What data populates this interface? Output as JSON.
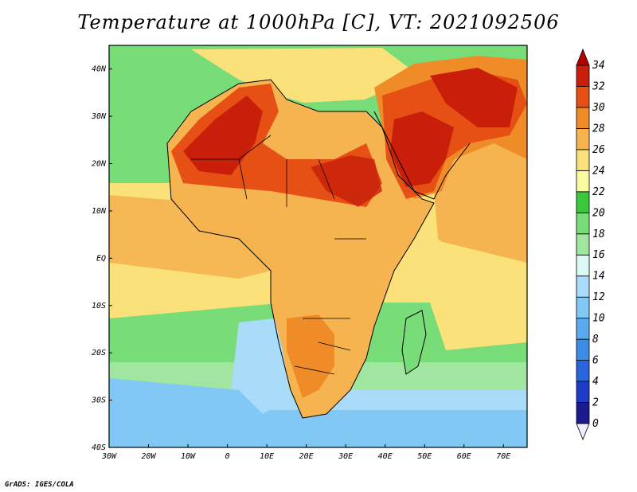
{
  "title": "Temperature at 1000hPa [C], VT: 2021092506",
  "credit": "GrADS: IGES/COLA",
  "map": {
    "lon_range": [
      -30,
      76
    ],
    "lat_range": [
      -40,
      45
    ],
    "x_ticks": [
      "30W",
      "20W",
      "10W",
      "0",
      "10E",
      "20E",
      "30E",
      "40E",
      "50E",
      "60E",
      "70E"
    ],
    "y_ticks": [
      "40S",
      "30S",
      "20S",
      "10S",
      "EQ",
      "10N",
      "20N",
      "30N",
      "40N"
    ]
  },
  "colorbar": {
    "labels": [
      "0",
      "2",
      "4",
      "6",
      "8",
      "10",
      "12",
      "14",
      "16",
      "18",
      "20",
      "22",
      "24",
      "26",
      "28",
      "30",
      "32",
      "34"
    ],
    "colors": [
      "#eeeeff",
      "#1a1a8c",
      "#1e3cc8",
      "#2864dc",
      "#3c8ce6",
      "#5aaaf0",
      "#82c8f5",
      "#aadcfa",
      "#dcfaf5",
      "#a0e6a0",
      "#78dc78",
      "#3cc83c",
      "#fafaa0",
      "#fae17a",
      "#f5b450",
      "#f08c28",
      "#e65014",
      "#c81e0a",
      "#b40000"
    ],
    "units": "C"
  },
  "field_colors": {
    "ocean_cold": "#82c8f5",
    "ocean_cool": "#aadcfa",
    "ocean_mild": "#a0e6a0",
    "ocean_green": "#78dc78",
    "warm": "#fae17a",
    "warmer": "#f5b450",
    "hot": "#f08c28",
    "very_hot": "#e65014",
    "extreme": "#c81e0a"
  }
}
